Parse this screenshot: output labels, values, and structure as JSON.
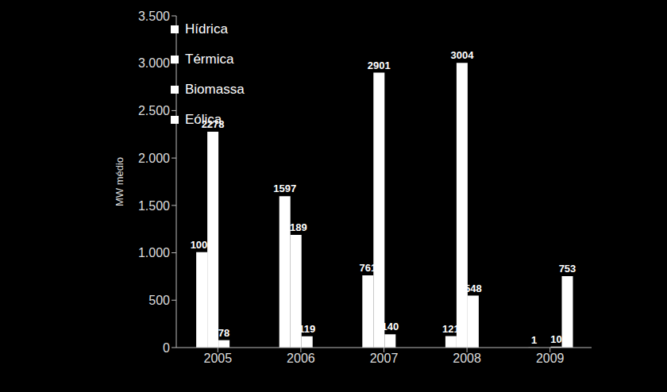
{
  "chart_data": {
    "type": "bar",
    "categories": [
      "2005",
      "2006",
      "2007",
      "2008",
      "2009"
    ],
    "y_label": "MW médio",
    "series": [
      {
        "name": "Hídrica",
        "color": "#ffffff",
        "values": [
          1006,
          1597,
          761,
          121,
          1
        ]
      },
      {
        "name": "Térmica",
        "color": "#ffffff",
        "values": [
          2278,
          1189,
          2901,
          3004,
          null
        ]
      },
      {
        "name": "Biomassa",
        "color": "#ffffff",
        "values": [
          78,
          119,
          140,
          548,
          10
        ]
      },
      {
        "name": "Eólica",
        "color": "#ffffff",
        "values": [
          null,
          null,
          null,
          null,
          753
        ]
      }
    ],
    "ylim": [
      0,
      3500
    ],
    "yticks": [
      {
        "value": 0,
        "label": "0"
      },
      {
        "value": 500,
        "label": "500"
      },
      {
        "value": 1000,
        "label": "1.000"
      },
      {
        "value": 1500,
        "label": "1.500"
      },
      {
        "value": 2000,
        "label": "2.000"
      },
      {
        "value": 2500,
        "label": "2.500"
      },
      {
        "value": 3000,
        "label": "3.000"
      },
      {
        "value": 3500,
        "label": "3.500"
      }
    ],
    "grid": false,
    "legend": "upper left",
    "data_labels": true
  }
}
